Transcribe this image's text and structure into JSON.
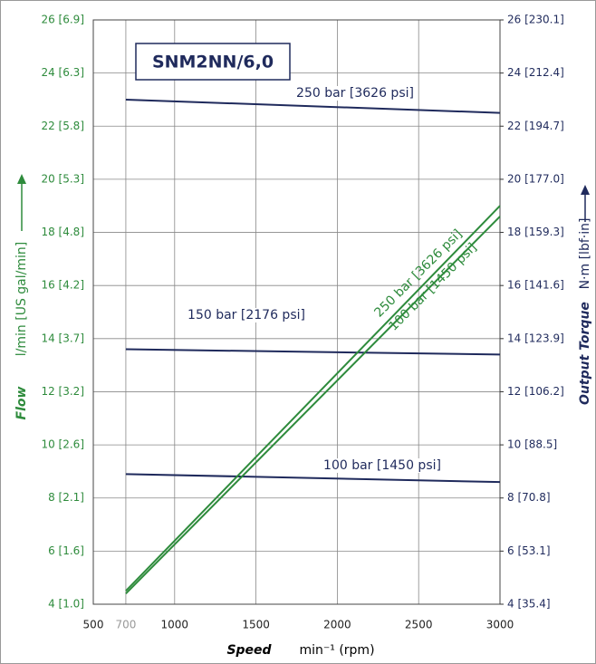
{
  "chart_data": {
    "type": "line",
    "title": "SNM2NN/6,0",
    "x_label": "Speed",
    "x_unit": "min⁻¹ (rpm)",
    "y_label": "Flow",
    "y_unit": "l/min  [US gal/min]",
    "y2_label": "Output Torque",
    "y2_unit": "N·m  [lbf·in]",
    "x": [
      700,
      3000
    ],
    "xlim": [
      500,
      3000
    ],
    "xticks": [
      500,
      700,
      1000,
      1500,
      2000,
      2500,
      3000
    ],
    "ylim": [
      4,
      26
    ],
    "yticks": [
      {
        "value": 4,
        "label": "4 [1.0]"
      },
      {
        "value": 6,
        "label": "6 [1.6]"
      },
      {
        "value": 8,
        "label": "8 [2.1]"
      },
      {
        "value": 10,
        "label": "10 [2.6]"
      },
      {
        "value": 12,
        "label": "12 [3.2]"
      },
      {
        "value": 14,
        "label": "14 [3.7]"
      },
      {
        "value": 16,
        "label": "16 [4.2]"
      },
      {
        "value": 18,
        "label": "18 [4.8]"
      },
      {
        "value": 20,
        "label": "20 [5.3]"
      },
      {
        "value": 22,
        "label": "22 [5.8]"
      },
      {
        "value": 24,
        "label": "24 [6.3]"
      },
      {
        "value": 26,
        "label": "26 [6.9]"
      }
    ],
    "y2lim": [
      4,
      26
    ],
    "y2ticks": [
      {
        "value": 4,
        "label": "4 [35.4]"
      },
      {
        "value": 6,
        "label": "6 [53.1]"
      },
      {
        "value": 8,
        "label": "8 [70.8]"
      },
      {
        "value": 10,
        "label": "10 [88.5]"
      },
      {
        "value": 12,
        "label": "12 [106.2]"
      },
      {
        "value": 14,
        "label": "14 [123.9]"
      },
      {
        "value": 16,
        "label": "16 [141.6]"
      },
      {
        "value": 18,
        "label": "18 [159.3]"
      },
      {
        "value": 20,
        "label": "20 [177.0]"
      },
      {
        "value": 22,
        "label": "22 [194.7]"
      },
      {
        "value": 24,
        "label": "24 [212.4]"
      },
      {
        "value": 26,
        "label": "26 [230.1]"
      }
    ],
    "grid": true,
    "series": [
      {
        "name": "250 bar [3626 psi]",
        "color": "#1f2a5c",
        "axis": "y2",
        "values": [
          23.0,
          22.5
        ]
      },
      {
        "name": "150 bar [2176 psi]",
        "color": "#1f2a5c",
        "axis": "y2",
        "values": [
          13.6,
          13.4
        ]
      },
      {
        "name": "100 bar [1450 psi]",
        "color": "#1f2a5c",
        "axis": "y2",
        "values": [
          8.9,
          8.6
        ]
      },
      {
        "name": "250 bar [3626 psi]",
        "color": "#2e8b3c",
        "values": [
          4.5,
          19.0
        ]
      },
      {
        "name": "100 bar [1450 psi]",
        "color": "#2e8b3c",
        "values": [
          4.4,
          18.6
        ]
      }
    ]
  }
}
